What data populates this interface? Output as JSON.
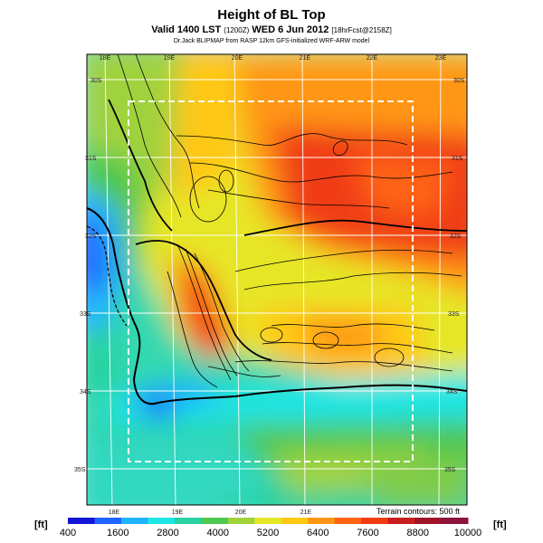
{
  "header": {
    "title": "Height of BL Top",
    "subtitle_main": "Valid 1400 LST",
    "subtitle_utc": "(1200Z)",
    "subtitle_date": "WED 6 Jun 2012",
    "subtitle_fcst": "[18hrFcst@2158Z]",
    "credit": "Dr.Jack BLIPMAP from RASP 12km GFS-initialized WRF-ARW model"
  },
  "map": {
    "lon_labels_top": [
      "18E",
      "19E",
      "20E",
      "21E",
      "22E",
      "23E"
    ],
    "lon_labels_bottom": [
      "18E",
      "19E",
      "20E",
      "21E"
    ],
    "lat_labels_left": [
      "30S",
      "31S",
      "32S",
      "33S",
      "34S",
      "35S"
    ],
    "lat_labels_right": [
      "30S",
      "31S",
      "32S",
      "33S",
      "34S",
      "35S"
    ],
    "terrain_note": "Terrain contours: 500 ft"
  },
  "colorbar": {
    "unit_left": "[ft]",
    "unit_right": "[ft]",
    "ticks": [
      "400",
      "1600",
      "2800",
      "4000",
      "5200",
      "6400",
      "7600",
      "8800",
      "10000"
    ],
    "colors": [
      "#1414d6",
      "#1e64ff",
      "#1eb4ff",
      "#1ee6e6",
      "#28d2a0",
      "#50c850",
      "#a0d23c",
      "#e6e628",
      "#ffc814",
      "#ff9614",
      "#ff6414",
      "#f03c14",
      "#c81e1e",
      "#a01428",
      "#8c143c"
    ]
  }
}
